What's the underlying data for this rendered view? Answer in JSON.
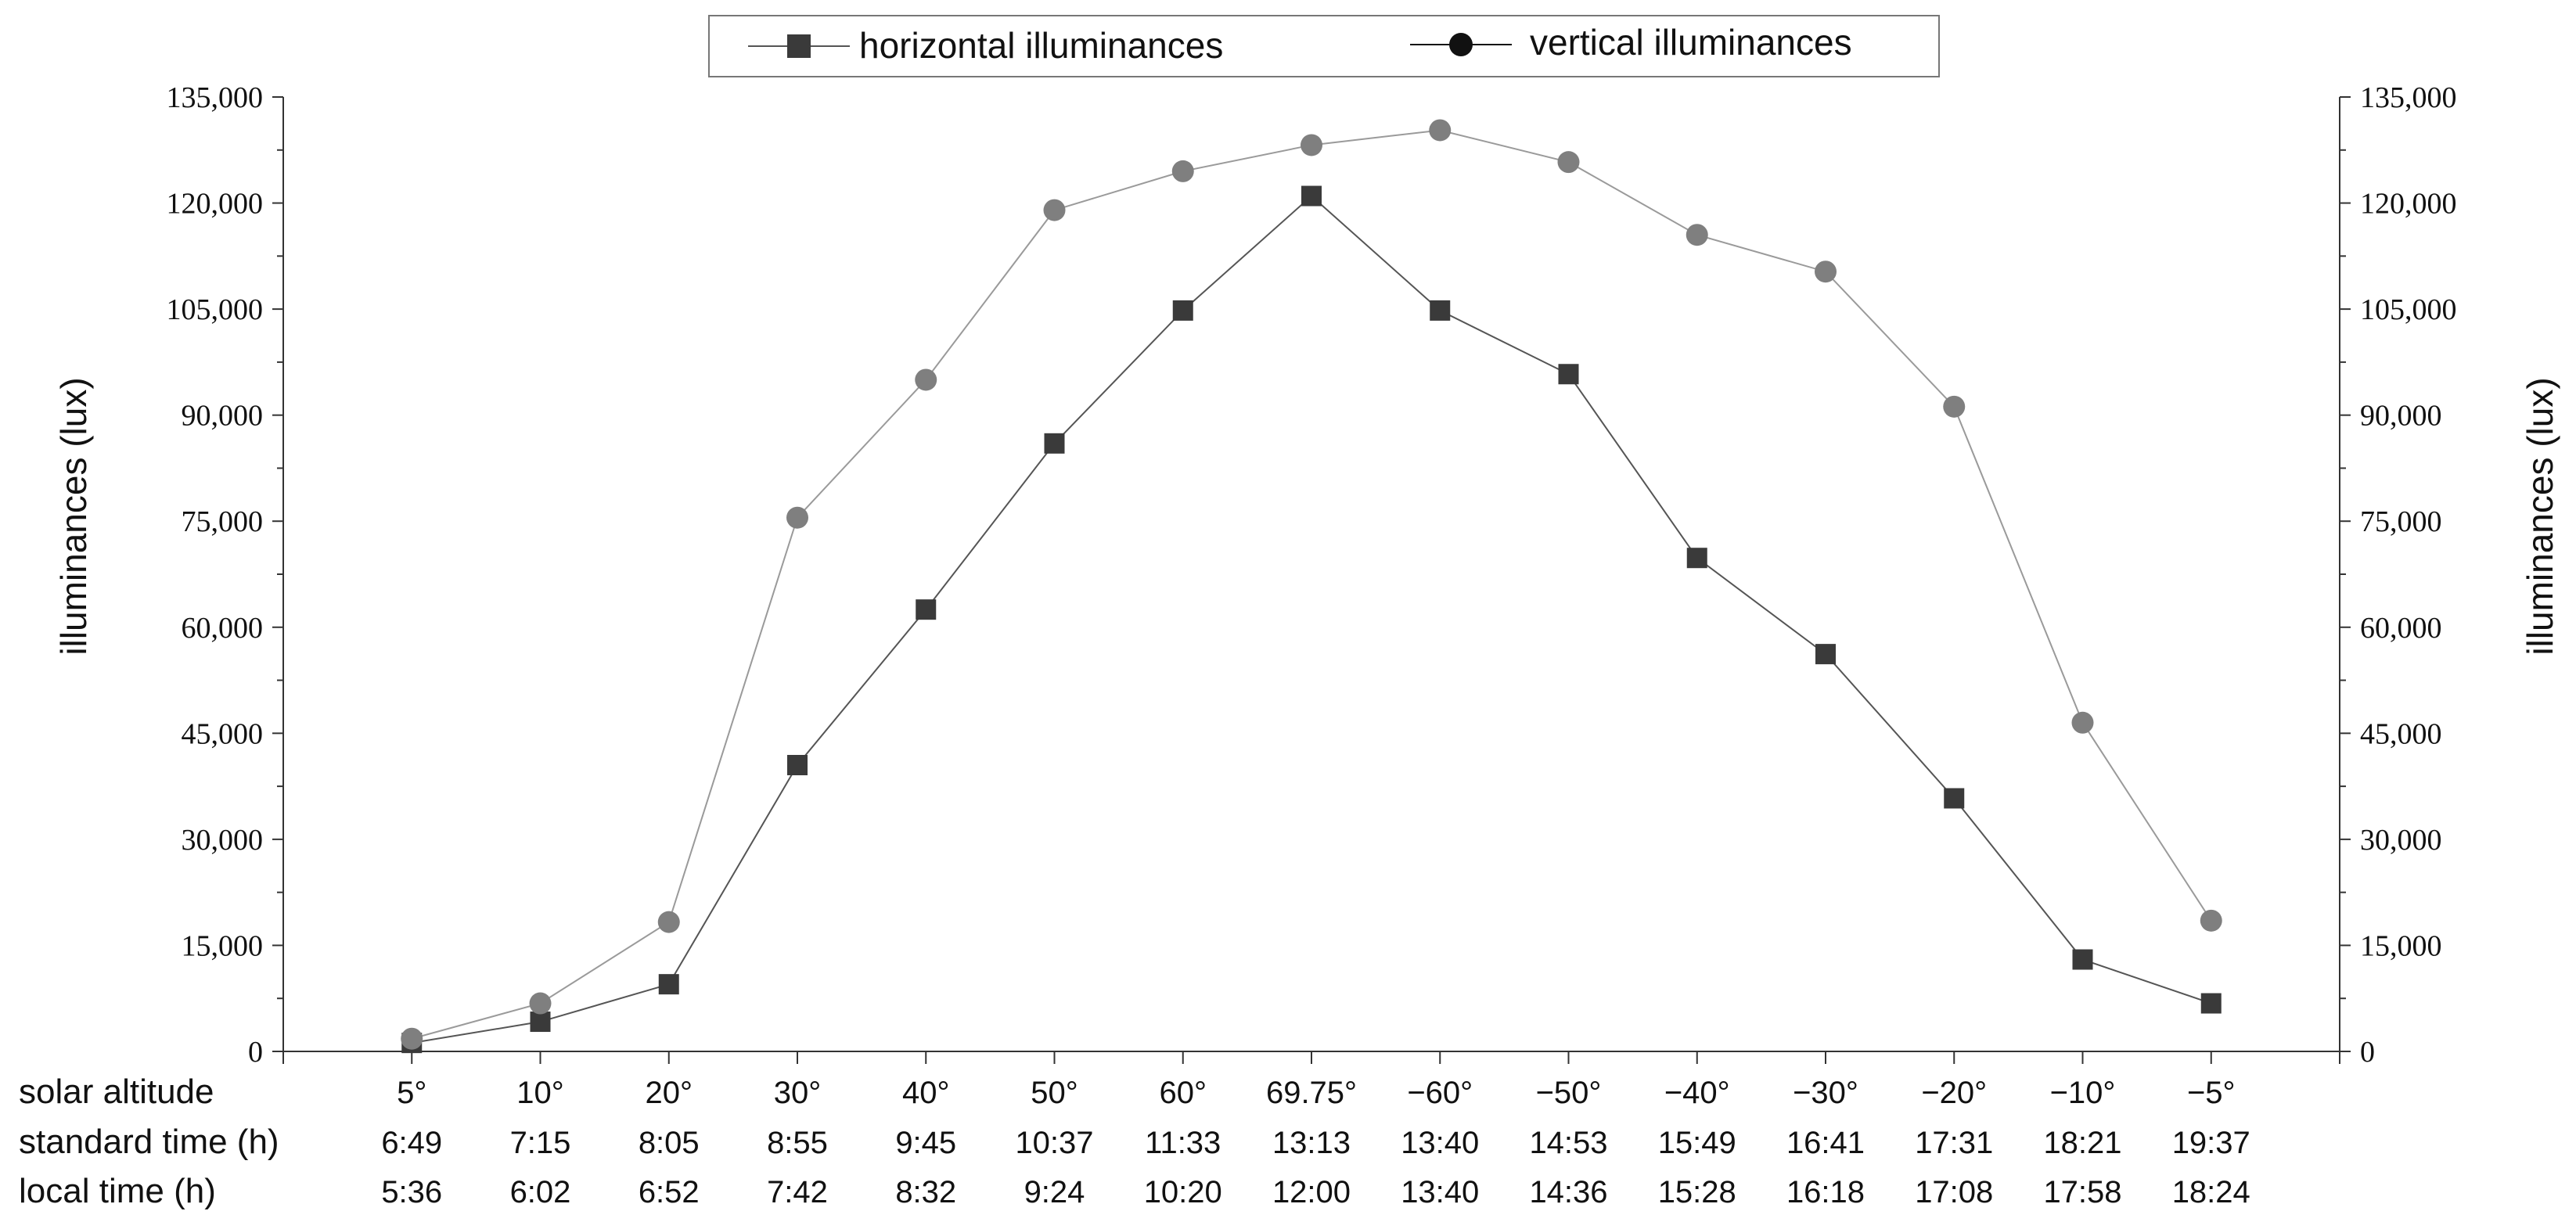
{
  "chart_data": {
    "type": "line",
    "categories": [
      "5°",
      "10°",
      "20°",
      "30°",
      "40°",
      "50°",
      "60°",
      "69.75°",
      "−60°",
      "−50°",
      "−40°",
      "−30°",
      "−20°",
      "−10°",
      "−5°"
    ],
    "category_rows": [
      {
        "title": "solar altitude",
        "labels": [
          "5°",
          "10°",
          "20°",
          "30°",
          "40°",
          "50°",
          "60°",
          "69.75°",
          "−60°",
          "−50°",
          "−40°",
          "−30°",
          "−20°",
          "−10°",
          "−5°"
        ]
      },
      {
        "title": "standard time (h)",
        "labels": [
          "6:49",
          "7:15",
          "8:05",
          "8:55",
          "9:45",
          "10:37",
          "11:33",
          "13:13",
          "13:40",
          "14:53",
          "15:49",
          "16:41",
          "17:31",
          "18:21",
          "19:37"
        ]
      },
      {
        "title": "local time (h)",
        "labels": [
          "5:36",
          "6:02",
          "6:52",
          "7:42",
          "8:32",
          "9:24",
          "10:20",
          "12:00",
          "13:40",
          "14:36",
          "15:28",
          "16:18",
          "17:08",
          "17:58",
          "18:24"
        ]
      }
    ],
    "series": [
      {
        "name": "horizontal illuminances",
        "marker": "square",
        "color": "#3a3a3a",
        "line_color": "#555555",
        "values": [
          1200,
          4200,
          9500,
          40500,
          62500,
          86000,
          104800,
          121000,
          104800,
          95800,
          69800,
          56200,
          35800,
          13000,
          6800
        ]
      },
      {
        "name": "vertical illuminances",
        "marker": "circle",
        "color": "#7f7f7f",
        "line_color": "#9a9a9a",
        "values": [
          1800,
          6800,
          18300,
          75500,
          95000,
          119000,
          124500,
          128200,
          130300,
          125800,
          115500,
          110300,
          91200,
          46500,
          18500
        ]
      }
    ],
    "ylabel": "illuminances (lux)",
    "ylabel_right": "illuminances (lux)",
    "ylim": [
      0,
      135000
    ],
    "yticks": [
      0,
      15000,
      30000,
      45000,
      60000,
      75000,
      90000,
      105000,
      120000,
      135000
    ],
    "ytick_labels": [
      "0",
      "15,000",
      "30,000",
      "45,000",
      "60,000",
      "75,000",
      "90,000",
      "105,000",
      "120,000",
      "135,000"
    ],
    "grid": false,
    "legend_position": "top-center"
  }
}
